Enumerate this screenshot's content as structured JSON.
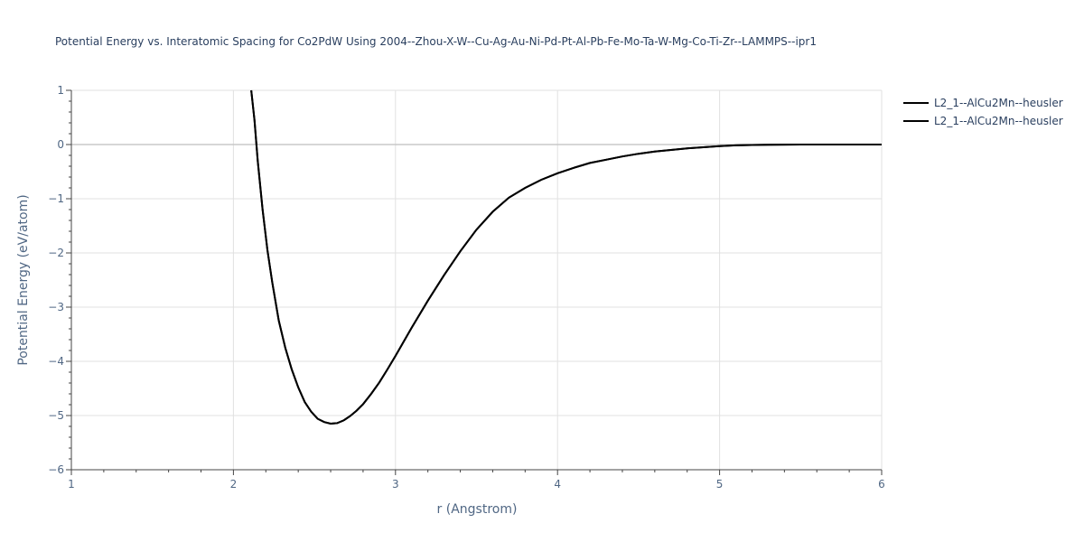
{
  "chart_data": {
    "type": "line",
    "title": "Potential Energy vs. Interatomic Spacing for Co2PdW Using 2004--Zhou-X-W--Cu-Ag-Au-Ni-Pd-Pt-Al-Pb-Fe-Mo-Ta-W-Mg-Co-Ti-Zr--LAMMPS--ipr1",
    "xlabel": "r (Angstrom)",
    "ylabel": "Potential Energy (eV/atom)",
    "xlim": [
      1,
      6
    ],
    "ylim": [
      -6,
      1
    ],
    "x_ticks": [
      1,
      2,
      3,
      4,
      5,
      6
    ],
    "y_ticks": [
      1,
      0,
      -1,
      -2,
      -3,
      -4,
      -5,
      -6
    ],
    "x_tick_labels": [
      "1",
      "2",
      "3",
      "4",
      "5",
      "6"
    ],
    "y_tick_labels": [
      "1",
      "0",
      "−1",
      "−2",
      "−3",
      "−4",
      "−5",
      "−6"
    ],
    "grid": true,
    "legend_position": "top-right",
    "series": [
      {
        "name": "L2_1--AlCu2Mn--heusler",
        "color": "#000000",
        "x": [
          2.11,
          2.13,
          2.15,
          2.18,
          2.21,
          2.24,
          2.28,
          2.32,
          2.36,
          2.4,
          2.44,
          2.48,
          2.52,
          2.56,
          2.6,
          2.64,
          2.68,
          2.72,
          2.76,
          2.8,
          2.85,
          2.9,
          2.95,
          3.0,
          3.05,
          3.1,
          3.2,
          3.3,
          3.4,
          3.5,
          3.6,
          3.7,
          3.8,
          3.9,
          4.0,
          4.1,
          4.2,
          4.3,
          4.4,
          4.5,
          4.6,
          4.7,
          4.8,
          4.9,
          5.0,
          5.1,
          5.2,
          5.3,
          5.4,
          5.5,
          5.6,
          5.7,
          5.8,
          5.9,
          6.0
        ],
        "y": [
          1.0,
          0.45,
          -0.3,
          -1.2,
          -1.95,
          -2.55,
          -3.25,
          -3.75,
          -4.15,
          -4.48,
          -4.75,
          -4.93,
          -5.06,
          -5.12,
          -5.15,
          -5.14,
          -5.09,
          -5.01,
          -4.91,
          -4.79,
          -4.6,
          -4.39,
          -4.15,
          -3.9,
          -3.64,
          -3.38,
          -2.88,
          -2.41,
          -1.97,
          -1.57,
          -1.24,
          -0.98,
          -0.8,
          -0.65,
          -0.53,
          -0.43,
          -0.34,
          -0.28,
          -0.22,
          -0.17,
          -0.13,
          -0.1,
          -0.07,
          -0.05,
          -0.03,
          -0.015,
          -0.008,
          -0.005,
          -0.002,
          -0.001,
          0.0,
          0.0,
          0.0,
          0.0,
          0.0
        ]
      },
      {
        "name": "L2_1--AlCu2Mn--heusler",
        "color": "#000000",
        "x": [
          2.11,
          2.13,
          2.15,
          2.18,
          2.21,
          2.24,
          2.28,
          2.32,
          2.36,
          2.4,
          2.44,
          2.48,
          2.52,
          2.56,
          2.6,
          2.64,
          2.68,
          2.72,
          2.76,
          2.8,
          2.85,
          2.9,
          2.95,
          3.0,
          3.05,
          3.1,
          3.2,
          3.3,
          3.4,
          3.5,
          3.6,
          3.7,
          3.8,
          3.9,
          4.0,
          4.1,
          4.2,
          4.3,
          4.4,
          4.5,
          4.6,
          4.7,
          4.8,
          4.9,
          5.0,
          5.1,
          5.2,
          5.3,
          5.4,
          5.5,
          5.6,
          5.7,
          5.8,
          5.9,
          6.0
        ],
        "y": [
          1.0,
          0.45,
          -0.3,
          -1.2,
          -1.95,
          -2.55,
          -3.25,
          -3.75,
          -4.15,
          -4.48,
          -4.75,
          -4.93,
          -5.06,
          -5.12,
          -5.15,
          -5.14,
          -5.09,
          -5.01,
          -4.91,
          -4.79,
          -4.6,
          -4.39,
          -4.15,
          -3.9,
          -3.64,
          -3.38,
          -2.88,
          -2.41,
          -1.97,
          -1.57,
          -1.24,
          -0.98,
          -0.8,
          -0.65,
          -0.53,
          -0.43,
          -0.34,
          -0.28,
          -0.22,
          -0.17,
          -0.13,
          -0.1,
          -0.07,
          -0.05,
          -0.03,
          -0.015,
          -0.008,
          -0.005,
          -0.002,
          -0.001,
          0.0,
          0.0,
          0.0,
          0.0,
          0.0
        ]
      }
    ]
  }
}
